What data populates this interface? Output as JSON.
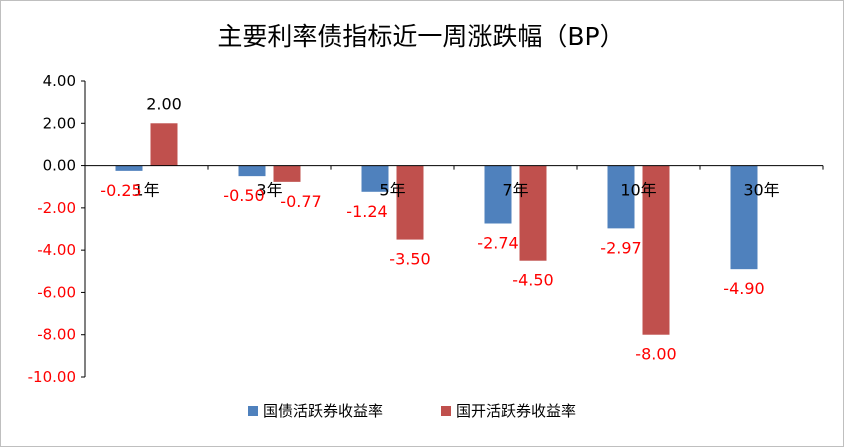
{
  "chart_data": {
    "type": "bar",
    "title": "主要利率债指标近一周涨跌幅（BP）",
    "categories": [
      "1年",
      "3年",
      "5年",
      "7年",
      "10年",
      "30年"
    ],
    "series": [
      {
        "name": "国债活跃券收益率",
        "color": "#4f81bd",
        "values": [
          -0.25,
          -0.5,
          -1.24,
          -2.74,
          -2.97,
          -4.9
        ],
        "labels": [
          "-0.25",
          "-0.50",
          "-1.24",
          "-2.74",
          "-2.97",
          "-4.90"
        ]
      },
      {
        "name": "国开活跃券收益率",
        "color": "#c0504d",
        "values": [
          2.0,
          -0.77,
          -3.5,
          -4.5,
          -8.0,
          null
        ],
        "labels": [
          "2.00",
          "-0.77",
          "-3.50",
          "-4.50",
          "-8.00",
          ""
        ]
      }
    ],
    "yticks": [
      "4.00",
      "2.00",
      "0.00",
      "-2.00",
      "-4.00",
      "-6.00",
      "-8.00",
      "-10.00"
    ],
    "ylim": [
      -10,
      4
    ],
    "grid": false,
    "legend_position": "bottom",
    "colors": {
      "positive_text": "#000000",
      "negative_text": "#ff0000"
    }
  }
}
